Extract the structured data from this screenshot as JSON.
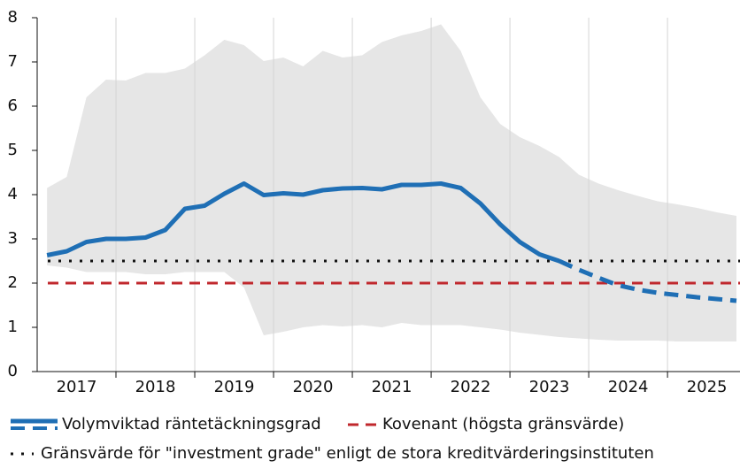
{
  "chart_data": {
    "type": "line",
    "x": [
      2017.125,
      2017.375,
      2017.625,
      2017.875,
      2018.125,
      2018.375,
      2018.625,
      2018.875,
      2019.125,
      2019.375,
      2019.625,
      2019.875,
      2020.125,
      2020.375,
      2020.625,
      2020.875,
      2021.125,
      2021.375,
      2021.625,
      2021.875,
      2022.125,
      2022.375,
      2022.625,
      2022.875,
      2023.125,
      2023.375,
      2023.625,
      2023.875,
      2024.125,
      2024.375,
      2024.625,
      2024.875,
      2025.125,
      2025.375,
      2025.625,
      2025.875
    ],
    "band": {
      "color": "#e6e6e6",
      "upper": [
        4.15,
        4.4,
        6.2,
        6.6,
        6.58,
        6.75,
        6.75,
        6.85,
        7.15,
        7.5,
        7.38,
        7.02,
        7.1,
        6.9,
        7.25,
        7.1,
        7.15,
        7.45,
        7.6,
        7.7,
        7.85,
        7.25,
        6.2,
        5.6,
        5.3,
        5.1,
        4.85,
        4.45,
        4.25,
        4.1,
        3.97,
        3.85,
        3.78,
        3.7,
        3.6,
        3.52
      ],
      "lower": [
        2.4,
        2.35,
        2.25,
        2.25,
        2.25,
        2.2,
        2.2,
        2.25,
        2.25,
        2.25,
        1.9,
        0.82,
        0.9,
        1.0,
        1.05,
        1.02,
        1.05,
        1.0,
        1.1,
        1.05,
        1.05,
        1.05,
        1.0,
        0.95,
        0.88,
        0.83,
        0.78,
        0.75,
        0.72,
        0.7,
        0.7,
        0.7,
        0.68,
        0.68,
        0.68,
        0.68
      ]
    },
    "series": [
      {
        "name": "Volymviktad räntetäckningsgrad",
        "color": "#1f6fb5",
        "values": [
          2.63,
          2.72,
          2.93,
          3.0,
          3.0,
          3.03,
          3.2,
          3.68,
          3.75,
          4.02,
          4.25,
          3.99,
          4.03,
          4.0,
          4.1,
          4.14,
          4.15,
          4.12,
          4.22,
          4.22,
          4.25,
          4.15,
          3.8,
          3.33,
          2.93,
          2.65,
          2.5,
          null,
          null,
          null,
          null,
          null,
          null,
          null,
          null,
          null
        ],
        "forecast_values": [
          null,
          null,
          null,
          null,
          null,
          null,
          null,
          null,
          null,
          null,
          null,
          null,
          null,
          null,
          null,
          null,
          null,
          null,
          null,
          null,
          null,
          null,
          null,
          null,
          null,
          null,
          2.5,
          2.3,
          2.12,
          1.95,
          1.85,
          1.78,
          1.73,
          1.68,
          1.64,
          1.6
        ]
      }
    ],
    "hlines": [
      {
        "name": "Kovenant (högsta gränsvärde)",
        "value": 2,
        "color": "#c0282d",
        "style": "dashed"
      },
      {
        "name": "Gränsvärde för \"investment grade\" enligt de stora kreditvärderingsinstituten",
        "value": 2.5,
        "color": "#111111",
        "style": "dotted"
      }
    ],
    "xlim": [
      2017,
      2025.92
    ],
    "xticks": [
      {
        "value": 2017.5,
        "label": "2017"
      },
      {
        "value": 2018.5,
        "label": "2018"
      },
      {
        "value": 2019.5,
        "label": "2019"
      },
      {
        "value": 2020.5,
        "label": "2020"
      },
      {
        "value": 2021.5,
        "label": "2021"
      },
      {
        "value": 2022.5,
        "label": "2022"
      },
      {
        "value": 2023.5,
        "label": "2023"
      },
      {
        "value": 2024.5,
        "label": "2024"
      },
      {
        "value": 2025.5,
        "label": "2025"
      }
    ],
    "ylim": [
      0,
      8
    ],
    "yticks": [
      0,
      1,
      2,
      3,
      4,
      5,
      6,
      7,
      8
    ],
    "grid": true
  }
}
